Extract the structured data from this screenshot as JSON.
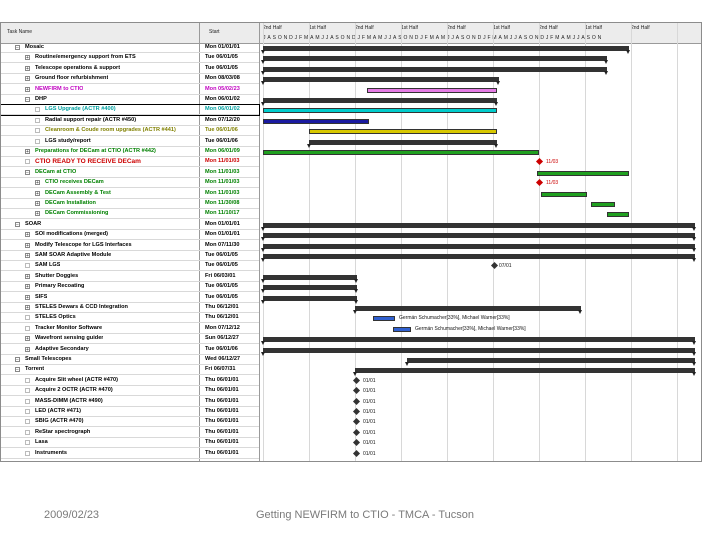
{
  "header": {
    "name_col": "Task Name",
    "start_col": "Start",
    "quarters": [
      "2nd Half",
      "1st Half",
      "2nd Half",
      "1st Half",
      "2nd Half",
      "1st Half",
      "2nd Half",
      "1st Half",
      "2nd Half"
    ],
    "month_letters": "JASONDJFMAMJJASONDJFMAMJJASONDJFMAMJJASONDJFMAMJJASONDJFMAMJJASON"
  },
  "rows": [
    {
      "name": "Mosaic",
      "date": "Mon 01/01/01",
      "color": "#000000",
      "level": 0,
      "box": "−",
      "highlight": false
    },
    {
      "name": "Routine/emergency support from ETS",
      "date": "Tue 06/01/05",
      "color": "#000000",
      "level": 1,
      "box": "+",
      "highlight": false
    },
    {
      "name": "Telescope operations & support",
      "date": "Tue 06/01/05",
      "color": "#000000",
      "level": 1,
      "box": "+",
      "highlight": false
    },
    {
      "name": "Ground floor refurbishment",
      "date": "Mon 08/03/08",
      "color": "#000000",
      "level": 1,
      "box": "+",
      "highlight": false
    },
    {
      "name": "NEWFIRM to CTIO",
      "date": "Mon 05/02/23",
      "color": "#c000c0",
      "level": 1,
      "box": "+",
      "highlight": false
    },
    {
      "name": "DHP",
      "date": "Mon 06/01/02",
      "color": "#000000",
      "level": 1,
      "box": "−",
      "highlight": false
    },
    {
      "name": "LGS Upgrade (ACTR #400)",
      "date": "Mon 06/01/02",
      "color": "#00a0a0",
      "level": 2,
      "box": "",
      "highlight": true
    },
    {
      "name": "Radial support repair (ACTR #450)",
      "date": "Mon 07/12/20",
      "color": "#000000",
      "level": 2,
      "box": "",
      "highlight": false
    },
    {
      "name": "Cleanroom & Coude room upgrades (ACTR #441)",
      "date": "Tue 06/01/06",
      "color": "#808000",
      "level": 2,
      "box": "",
      "highlight": false
    },
    {
      "name": "LGS study/report",
      "date": "Tue 06/01/06",
      "color": "#000000",
      "level": 2,
      "box": "",
      "highlight": false
    },
    {
      "name": "Preparations for DECam at CTIO (ACTR #442)",
      "date": "Mon 06/01/09",
      "color": "#008000",
      "level": 1,
      "box": "+",
      "highlight": false
    },
    {
      "name": "CTIO READY TO RECEIVE DECam",
      "date": "Mon 11/01/03",
      "color": "#cc0000",
      "level": 1,
      "box": "",
      "highlight": false
    },
    {
      "name": "DECam at CTIO",
      "date": "Mon 11/01/03",
      "color": "#008000",
      "level": 1,
      "box": "−",
      "highlight": false
    },
    {
      "name": "CTIO receives DECam",
      "date": "Mon 11/01/03",
      "color": "#008000",
      "level": 2,
      "box": "+",
      "highlight": false
    },
    {
      "name": "DECam Assembly & Test",
      "date": "Mon 11/01/03",
      "color": "#008000",
      "level": 2,
      "box": "+",
      "highlight": false
    },
    {
      "name": "DECam Installation",
      "date": "Mon 11/30/08",
      "color": "#008000",
      "level": 2,
      "box": "+",
      "highlight": false
    },
    {
      "name": "DECam Commissioning",
      "date": "Mon 11/10/17",
      "color": "#008000",
      "level": 2,
      "box": "+",
      "highlight": false
    },
    {
      "name": "SOAR",
      "date": "Mon 01/01/01",
      "color": "#000000",
      "level": 0,
      "box": "−",
      "highlight": false
    },
    {
      "name": "SOI modifications (merged)",
      "date": "Mon 01/01/01",
      "color": "#000000",
      "level": 1,
      "box": "+",
      "highlight": false
    },
    {
      "name": "Modify Telescope for LGS Interfaces",
      "date": "Mon 07/11/30",
      "color": "#000000",
      "level": 1,
      "box": "+",
      "highlight": false
    },
    {
      "name": "SAM SOAR Adaptive Module",
      "date": "Tue 06/01/05",
      "color": "#000000",
      "level": 1,
      "box": "+",
      "highlight": false
    },
    {
      "name": "SAM LGS",
      "date": "Tue 06/01/05",
      "color": "#000000",
      "level": 1,
      "box": "",
      "highlight": false
    },
    {
      "name": "Shutter Doggies",
      "date": "Fri 06/03/01",
      "color": "#000000",
      "level": 1,
      "box": "+",
      "highlight": false
    },
    {
      "name": "Primary Recoating",
      "date": "Tue 06/01/05",
      "color": "#000000",
      "level": 1,
      "box": "+",
      "highlight": false
    },
    {
      "name": "SIFS",
      "date": "Tue 06/01/05",
      "color": "#000000",
      "level": 1,
      "box": "+",
      "highlight": false
    },
    {
      "name": "STELES Dewars & CCD Integration",
      "date": "Thu 06/12/01",
      "color": "#000000",
      "level": 1,
      "box": "+",
      "highlight": false
    },
    {
      "name": "STELES Optics",
      "date": "Thu 06/12/01",
      "color": "#000000",
      "level": 1,
      "box": "",
      "highlight": false
    },
    {
      "name": "Tracker Monitor Software",
      "date": "Mon 07/12/12",
      "color": "#000000",
      "level": 1,
      "box": "",
      "highlight": false
    },
    {
      "name": "Wavefront sensing guider",
      "date": "Sun 06/12/27",
      "color": "#000000",
      "level": 1,
      "box": "+",
      "highlight": false
    },
    {
      "name": "Adaptive Secondary",
      "date": "Tue 06/01/06",
      "color": "#000000",
      "level": 1,
      "box": "+",
      "highlight": false
    },
    {
      "name": "Small Telescopes",
      "date": "Wed 06/12/27",
      "color": "#000000",
      "level": 0,
      "box": "−",
      "highlight": false
    },
    {
      "name": "Torrent",
      "date": "Fri 06/07/31",
      "color": "#000000",
      "level": 0,
      "box": "−",
      "highlight": false
    },
    {
      "name": "Acquire Slit wheel (ACTR #470)",
      "date": "Thu 06/01/01",
      "color": "#000000",
      "level": 1,
      "box": "",
      "highlight": false
    },
    {
      "name": "Acquire 2 OCTR (ACTR #470)",
      "date": "Thu 06/01/01",
      "color": "#000000",
      "level": 1,
      "box": "",
      "highlight": false
    },
    {
      "name": "MASS-DIMM (ACTR #490)",
      "date": "Thu 06/01/01",
      "color": "#000000",
      "level": 1,
      "box": "",
      "highlight": false
    },
    {
      "name": "LED (ACTR #471)",
      "date": "Thu 06/01/01",
      "color": "#000000",
      "level": 1,
      "box": "",
      "highlight": false
    },
    {
      "name": "SBIG (ACTR #470)",
      "date": "Thu 06/01/01",
      "color": "#000000",
      "level": 1,
      "box": "",
      "highlight": false
    },
    {
      "name": "ReStar spectrograph",
      "date": "Thu 06/01/01",
      "color": "#000000",
      "level": 1,
      "box": "",
      "highlight": false
    },
    {
      "name": "Lasa",
      "date": "Thu 06/01/01",
      "color": "#000000",
      "level": 1,
      "box": "",
      "highlight": false
    },
    {
      "name": "Instruments",
      "date": "Thu 06/01/01",
      "color": "#000000",
      "level": 1,
      "box": "",
      "highlight": false
    }
  ],
  "gantt_labels": {
    "decam_ready": "11/03",
    "decam_receive": "11/03",
    "sam_lgs": "07/01",
    "steles_dewars": "Germán Schumacher[33%], Michael Warner[33%]",
    "steles_optics": "Germán Schumacher[33%], Michael Warner[33%]",
    "milestone": "01/01"
  },
  "colors": {
    "pink": "#e57ce5",
    "cyan": "#00cccc",
    "navy": "#1a1aa0",
    "yellow": "#d8c800",
    "green": "#20a020",
    "red": "#cc0000",
    "summary": "#333333",
    "blue": "#3060d0"
  },
  "footer": {
    "date": "2009/02/23",
    "title": "Getting NEWFIRM to CTIO - TMCA - Tucson"
  }
}
